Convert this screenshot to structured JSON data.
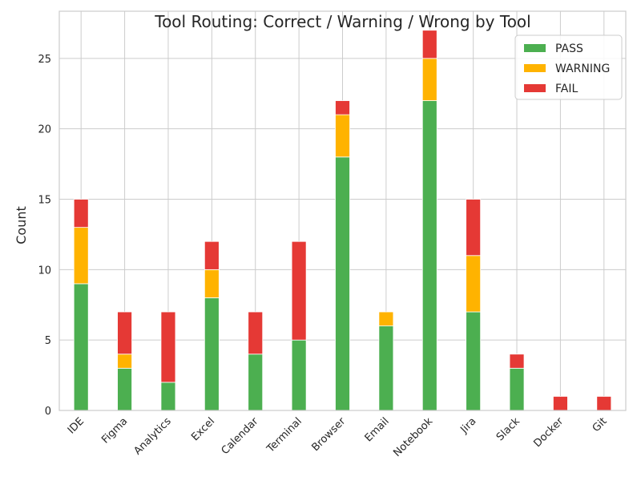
{
  "chart_data": {
    "type": "bar",
    "stacked": true,
    "title": "Tool Routing: Correct / Warning / Wrong by Tool",
    "xlabel": "",
    "ylabel": "Count",
    "ylim": [
      0,
      28.35
    ],
    "yticks": [
      0,
      5,
      10,
      15,
      20,
      25
    ],
    "grid": true,
    "legend_position": "top-right",
    "categories": [
      "IDE",
      "Figma",
      "Analytics",
      "Excel",
      "Calendar",
      "Terminal",
      "Browser",
      "Email",
      "Notebook",
      "Jira",
      "Slack",
      "Docker",
      "Git"
    ],
    "series": [
      {
        "name": "PASS",
        "color": "#4caf50",
        "values": [
          9,
          3,
          2,
          8,
          4,
          5,
          18,
          6,
          22,
          7,
          3,
          0,
          0
        ]
      },
      {
        "name": "WARNING",
        "color": "#ffb300",
        "values": [
          4,
          1,
          0,
          2,
          0,
          0,
          3,
          1,
          3,
          4,
          0,
          0,
          0
        ]
      },
      {
        "name": "FAIL",
        "color": "#e53935",
        "values": [
          2,
          3,
          5,
          2,
          3,
          7,
          1,
          0,
          2,
          4,
          1,
          1,
          1
        ]
      }
    ]
  }
}
